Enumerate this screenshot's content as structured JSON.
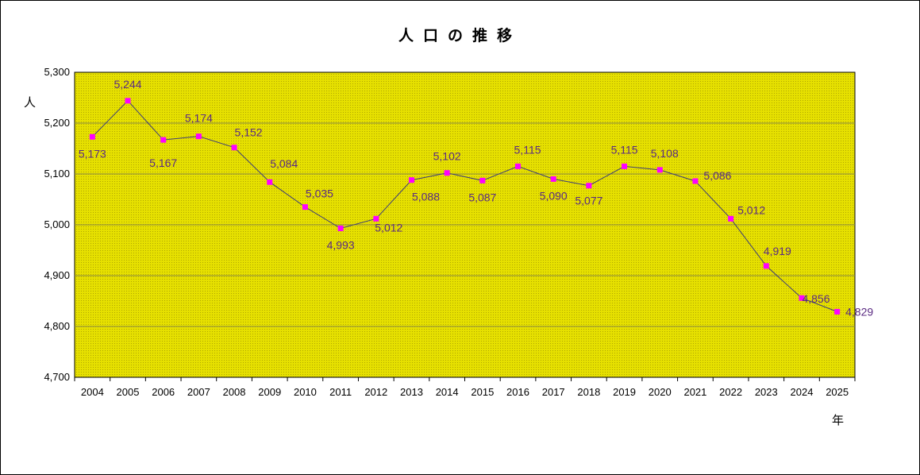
{
  "chart_data": {
    "type": "line",
    "title": "人口の推移",
    "ylabel": "人",
    "xlabel": "年",
    "x": [
      "2004",
      "2005",
      "2006",
      "2007",
      "2008",
      "2009",
      "2010",
      "2011",
      "2012",
      "2013",
      "2014",
      "2015",
      "2016",
      "2017",
      "2018",
      "2019",
      "2020",
      "2021",
      "2022",
      "2023",
      "2024",
      "2025"
    ],
    "values": [
      5173,
      5244,
      5167,
      5174,
      5152,
      5084,
      5035,
      4993,
      5012,
      5088,
      5102,
      5087,
      5115,
      5090,
      5077,
      5115,
      5108,
      5086,
      5012,
      4919,
      4856,
      4829
    ],
    "data_labels": [
      "5,173",
      "5,244",
      "5,167",
      "5,174",
      "5,152",
      "5,084",
      "5,035",
      "4,993",
      "5,012",
      "5,088",
      "5,102",
      "5,087",
      "5,115",
      "5,090",
      "5,077",
      "5,115",
      "5,108",
      "5,086",
      "5,012",
      "4,919",
      "4,856",
      "4,829"
    ],
    "ylim": [
      4700,
      5300
    ],
    "yticks": [
      4700,
      4800,
      4900,
      5000,
      5100,
      5200,
      5300
    ],
    "ytick_labels": [
      "4,700",
      "4,800",
      "4,900",
      "5,000",
      "5,100",
      "5,200",
      "5,300"
    ],
    "grid": true,
    "legend": "none",
    "colors": {
      "plot_background": "#e6e000",
      "line": "#3c3c78",
      "marker": "#ff00ff",
      "data_label": "#5a2a82",
      "grid": "#8a8a40"
    }
  }
}
